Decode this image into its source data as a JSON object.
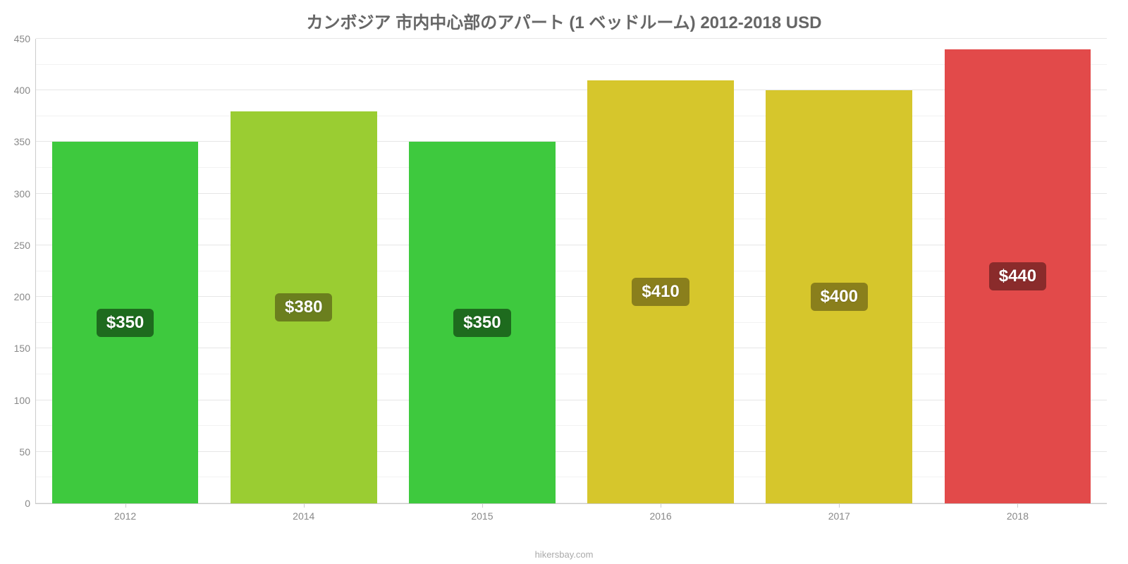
{
  "chart": {
    "type": "bar",
    "title": "カンボジア 市内中心部のアパート (1 ベッドルーム) 2012-2018 USD",
    "title_fontsize": 24,
    "title_color": "#666666",
    "categories": [
      "2012",
      "2014",
      "2015",
      "2016",
      "2017",
      "2018"
    ],
    "values": [
      350,
      380,
      350,
      410,
      400,
      440
    ],
    "value_labels": [
      "$350",
      "$380",
      "$350",
      "$410",
      "$400",
      "$440"
    ],
    "bar_colors": [
      "#3ec93e",
      "#9acd32",
      "#3ec93e",
      "#d6c62c",
      "#d6c62c",
      "#e24a4a"
    ],
    "label_bg_colors": [
      "#1e6b1e",
      "#6b7f1e",
      "#1e6b1e",
      "#8a7f1c",
      "#8a7f1c",
      "#8a2b2b"
    ],
    "label_fontsize": 24,
    "ylim": [
      0,
      450
    ],
    "ytick_step": 50,
    "ytick_color": "#888888",
    "grid_color": "#e6e6e6",
    "minor_grid": true,
    "background_color": "#ffffff",
    "bar_width_pct": 82,
    "axis_color": "#cccccc",
    "xtick_fontsize": 14
  },
  "source": "hikersbay.com"
}
